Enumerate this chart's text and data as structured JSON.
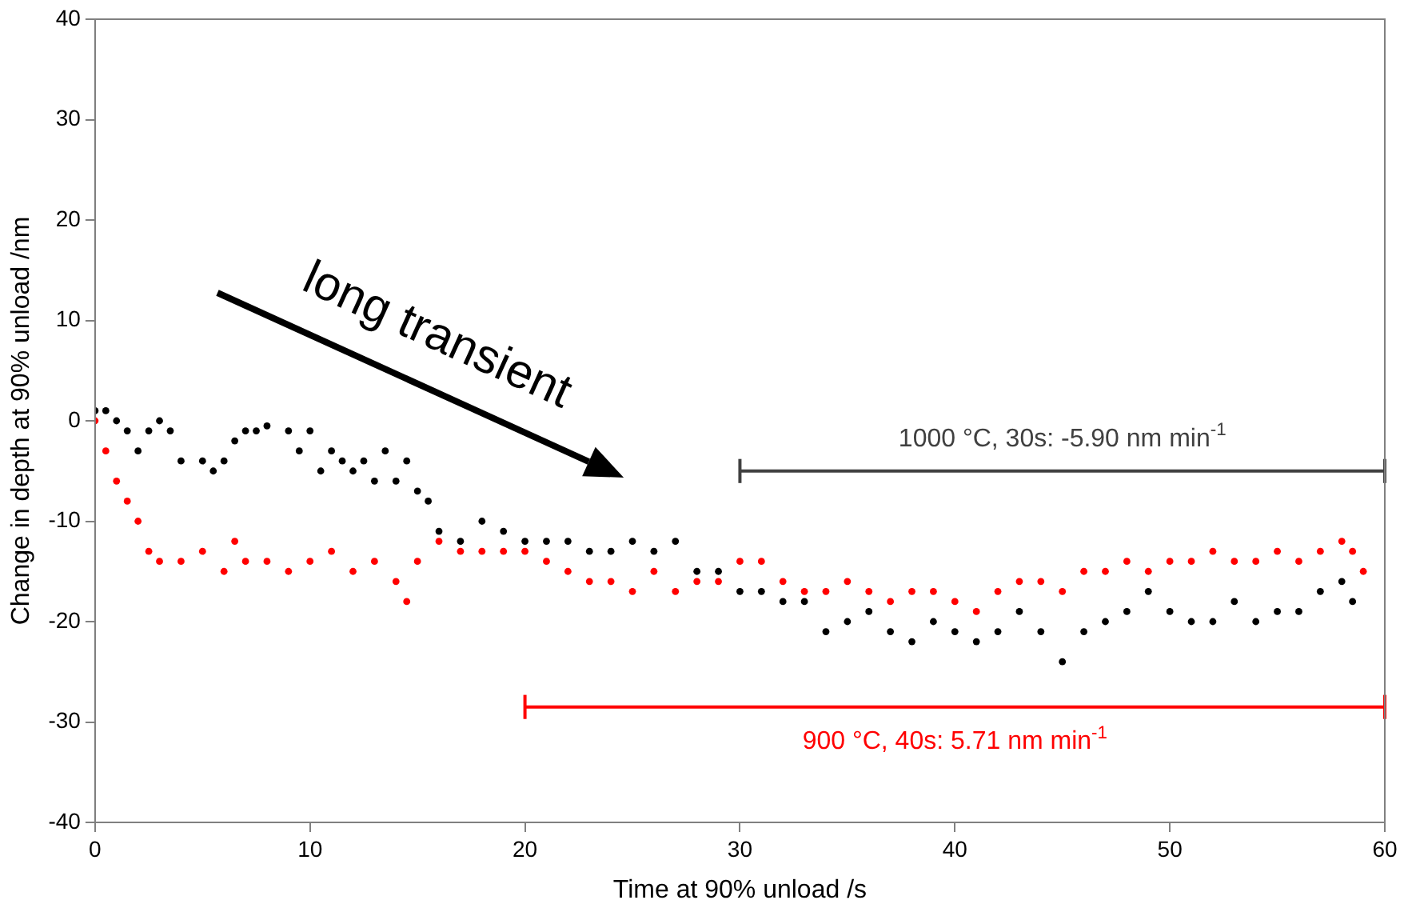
{
  "chart_data": {
    "type": "scatter",
    "xlabel": "Time at 90% unload /s",
    "ylabel": "Change in depth at 90% unload /nm",
    "xlim": [
      0,
      60
    ],
    "xticks": [
      0,
      10,
      20,
      30,
      40,
      50,
      60
    ],
    "ylim": [
      -40,
      40
    ],
    "yticks": [
      -40,
      -30,
      -20,
      -10,
      0,
      10,
      20,
      30,
      40
    ],
    "grid": false,
    "legend": false,
    "marker": "circle",
    "series": [
      {
        "color": "#ff0000",
        "x": [
          0,
          0.5,
          1,
          1.5,
          2,
          2.5,
          3,
          4,
          5,
          6,
          6.5,
          7,
          8,
          9,
          10,
          11,
          12,
          13,
          14,
          14.5,
          15,
          16,
          17,
          18,
          19,
          20,
          21,
          22,
          23,
          24,
          25,
          26,
          27,
          28,
          29,
          30,
          31,
          32,
          33,
          34,
          35,
          36,
          37,
          38,
          39,
          40,
          41,
          42,
          43,
          44,
          45,
          46,
          47,
          48,
          49,
          50,
          51,
          52,
          53,
          54,
          55,
          56,
          57,
          58,
          58.5,
          59
        ],
        "values": [
          0,
          -3,
          -6,
          -8,
          -10,
          -13,
          -14,
          -14,
          -13,
          -15,
          -12,
          -14,
          -14,
          -15,
          -14,
          -13,
          -15,
          -14,
          -16,
          -18,
          -14,
          -12,
          -13,
          -13,
          -13,
          -13,
          -14,
          -15,
          -16,
          -16,
          -17,
          -15,
          -17,
          -16,
          -16,
          -14,
          -14,
          -16,
          -17,
          -17,
          -16,
          -17,
          -18,
          -17,
          -17,
          -18,
          -19,
          -17,
          -16,
          -16,
          -17,
          -15,
          -15,
          -14,
          -15,
          -14,
          -14,
          -13,
          -14,
          -14,
          -13,
          -14,
          -13,
          -12,
          -13,
          -15
        ]
      },
      {
        "color": "#000000",
        "x": [
          0,
          0.5,
          1,
          1.5,
          2,
          2.5,
          3,
          3.5,
          4,
          5,
          5.5,
          6,
          6.5,
          7,
          7.5,
          8,
          9,
          9.5,
          10,
          10.5,
          11,
          11.5,
          12,
          12.5,
          13,
          13.5,
          14,
          14.5,
          15,
          15.5,
          16,
          17,
          18,
          19,
          20,
          21,
          22,
          23,
          24,
          25,
          26,
          27,
          28,
          29,
          30,
          31,
          32,
          33,
          34,
          35,
          36,
          37,
          38,
          39,
          40,
          41,
          42,
          43,
          44,
          45,
          46,
          47,
          48,
          49,
          50,
          51,
          52,
          53,
          54,
          55,
          56,
          57,
          58,
          58.5
        ],
        "values": [
          1,
          1,
          0,
          -1,
          -3,
          -1,
          0,
          -1,
          -4,
          -4,
          -5,
          -4,
          -2,
          -1,
          -1,
          -0.5,
          -1,
          -3,
          -1,
          -5,
          -3,
          -4,
          -5,
          -4,
          -6,
          -3,
          -6,
          -4,
          -7,
          -8,
          -11,
          -12,
          -10,
          -11,
          -12,
          -12,
          -12,
          -13,
          -13,
          -12,
          -13,
          -12,
          -15,
          -15,
          -17,
          -17,
          -18,
          -18,
          -21,
          -20,
          -19,
          -21,
          -22,
          -20,
          -21,
          -22,
          -21,
          -19,
          -21,
          -24,
          -21,
          -20,
          -19,
          -17,
          -19,
          -20,
          -20,
          -18,
          -20,
          -19,
          -19,
          -17,
          -16,
          -18
        ]
      },
      {
        "type": "line",
        "marker": "none",
        "name": "1000 °C, 30s: -5.90 nm min$^{-1}$",
        "color": "#404040",
        "x": [
          30,
          60
        ],
        "values": [
          -5,
          -5
        ],
        "errors": [
          1.2,
          1.2
        ]
      },
      {
        "type": "line",
        "marker": "none",
        "name": "900 °C, 40s: 5.71 nm min$^{-1}$",
        "color": "#ff0000",
        "x": [
          20,
          60
        ],
        "values": [
          -28.5,
          -28.5
        ],
        "errors": [
          1.2,
          1.2
        ]
      }
    ],
    "annotations": [
      "long transient"
    ]
  }
}
